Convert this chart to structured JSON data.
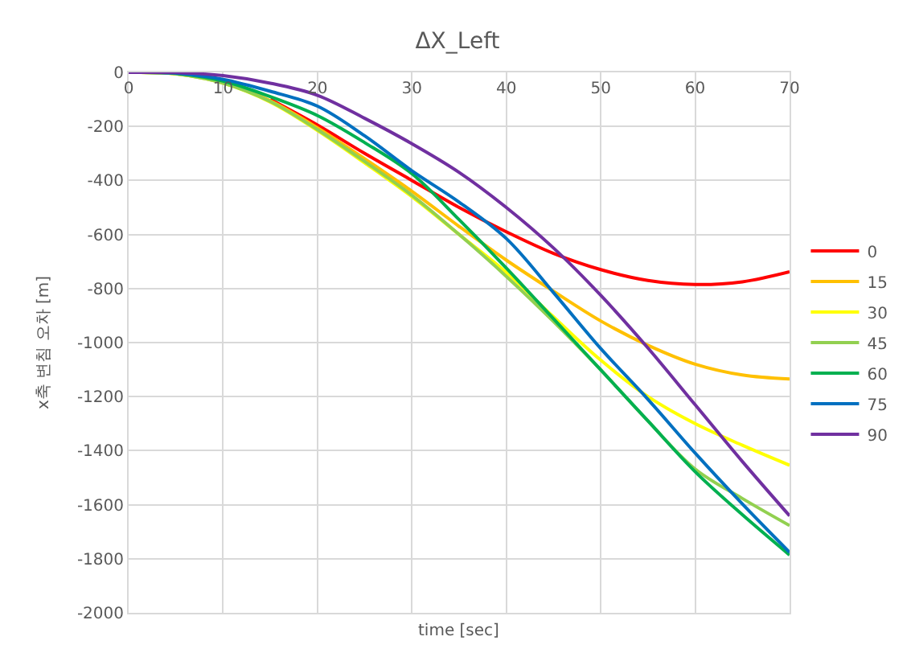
{
  "chart_data": {
    "type": "line",
    "title": "ΔX_Left",
    "xlabel": "time [sec]",
    "ylabel": "x축 변침 오차 [m]",
    "x": [
      0,
      5,
      10,
      15,
      20,
      25,
      30,
      35,
      40,
      45,
      50,
      55,
      60,
      65,
      70
    ],
    "xlim": [
      0,
      70
    ],
    "xticks": [
      0,
      10,
      20,
      30,
      40,
      50,
      60,
      70
    ],
    "ylim": [
      -2000,
      0
    ],
    "yticks": [
      -2000,
      -1800,
      -1600,
      -1400,
      -1200,
      -1000,
      -800,
      -600,
      -400,
      -200,
      0
    ],
    "grid": true,
    "legend": "right",
    "marker": "none",
    "line_style": "solid",
    "series": [
      {
        "name": "0",
        "color": "#ff0000",
        "values": [
          null,
          null,
          null,
          -100,
          -195,
          -300,
          -400,
          -500,
          -590,
          -670,
          -730,
          -770,
          -785,
          -775,
          -738
        ]
      },
      {
        "name": "15",
        "color": "#ffc000",
        "values": [
          0,
          -5,
          -38,
          -105,
          -205,
          -320,
          -440,
          -570,
          -695,
          -810,
          -920,
          -1010,
          -1080,
          -1120,
          -1135
        ]
      },
      {
        "name": "30",
        "color": "#ffff00",
        "values": [
          0,
          -5,
          -40,
          -110,
          -215,
          -335,
          -460,
          -600,
          -740,
          -905,
          -1065,
          -1200,
          -1300,
          -1380,
          -1454
        ]
      },
      {
        "name": "45",
        "color": "#92d050",
        "values": [
          0,
          -5,
          -40,
          -108,
          -212,
          -330,
          -455,
          -600,
          -755,
          -922,
          -1101,
          -1290,
          -1468,
          -1577,
          -1677
        ]
      },
      {
        "name": "60",
        "color": "#00b050",
        "values": [
          0,
          -4,
          -32,
          -90,
          -160,
          -260,
          -375,
          -545,
          -724,
          -912,
          -1101,
          -1290,
          -1478,
          -1637,
          -1786
        ]
      },
      {
        "name": "75",
        "color": "#0070c0",
        "values": [
          0,
          -3,
          -26,
          -70,
          -125,
          -235,
          -364,
          -480,
          -615,
          -815,
          -1022,
          -1210,
          -1409,
          -1597,
          -1776
        ]
      },
      {
        "name": "90",
        "color": "#7030a0",
        "values": [
          0,
          -1,
          -12,
          -40,
          -85,
          -170,
          -264,
          -370,
          -500,
          -650,
          -825,
          -1020,
          -1230,
          -1440,
          -1641
        ]
      }
    ]
  }
}
